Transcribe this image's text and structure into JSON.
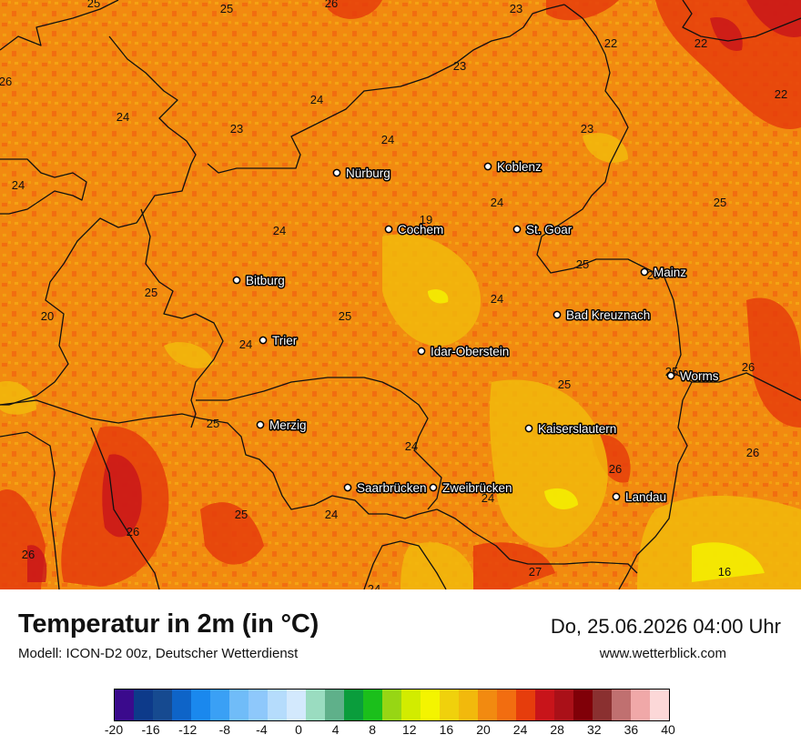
{
  "header": {
    "title": "Temperatur in 2m (in °C)",
    "model": "Modell: ICON-D2 00z, Deutscher Wetterdienst",
    "datetime": "Do, 25.06.2026 04:00 Uhr",
    "website": "www.wetterblick.com"
  },
  "cities": [
    {
      "name": "Nürburg"
    },
    {
      "name": "Koblenz"
    },
    {
      "name": "Cochem"
    },
    {
      "name": "St. Goar"
    },
    {
      "name": "Bitburg"
    },
    {
      "name": "Mainz"
    },
    {
      "name": "Bad Kreuznach"
    },
    {
      "name": "Trier"
    },
    {
      "name": "Idar-Oberstein"
    },
    {
      "name": "Worms"
    },
    {
      "name": "Merzig"
    },
    {
      "name": "Kaiserslautern"
    },
    {
      "name": "Saarbrücken"
    },
    {
      "name": "Zweibrücken"
    },
    {
      "name": "Landau"
    }
  ],
  "values": [
    "25",
    "26",
    "23",
    "25",
    "23",
    "22",
    "22",
    "22",
    "24",
    "24",
    "24",
    "23",
    "23",
    "24",
    "24",
    "19",
    "24",
    "25",
    "24",
    "25",
    "25",
    "25",
    "20",
    "25",
    "24",
    "24",
    "25",
    "26",
    "25",
    "25",
    "26",
    "24",
    "26",
    "26",
    "24",
    "25",
    "26",
    "24",
    "27",
    "16",
    "26"
  ],
  "colorscale": {
    "ticks": [
      "-20",
      "-16",
      "-12",
      "-8",
      "-4",
      "0",
      "4",
      "8",
      "12",
      "16",
      "20",
      "24",
      "28",
      "32",
      "36",
      "40"
    ],
    "colors": [
      "#3a0a8c",
      "#0d3a8a",
      "#164a90",
      "#0e64c8",
      "#1a88ee",
      "#3aa0f5",
      "#70bcf8",
      "#8ec8fb",
      "#b5dcfc",
      "#d3e9fd",
      "#9adcc0",
      "#5fb08a",
      "#0a9d3c",
      "#1bbf1b",
      "#97d614",
      "#d2ec00",
      "#f4f400",
      "#f0d10c",
      "#f2b90c",
      "#f28a10",
      "#f26d10",
      "#e63d0c",
      "#c8141a",
      "#aa1018",
      "#800008",
      "#8a3030",
      "#c07070",
      "#f0a8a8",
      "#fcd8d8"
    ]
  }
}
